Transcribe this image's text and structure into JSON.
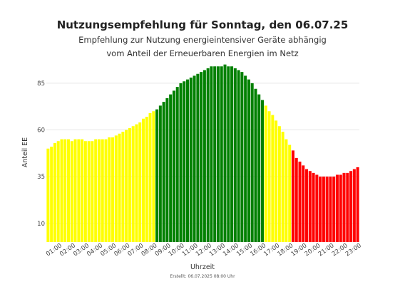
{
  "chart_data": {
    "type": "bar",
    "title": "Nutzungsempfehlung für Sonntag, den 06.07.25",
    "subtitle_lines": [
      "Empfehlung zur Nutzung energieintensiver Geräte abhängig",
      "vom Anteil der Erneuerbaren Energien im Netz"
    ],
    "xlabel": "Uhrzeit",
    "ylabel": "Anteil EE",
    "yticks": [
      10,
      35,
      60,
      85
    ],
    "ylim": [
      0,
      96
    ],
    "grid": true,
    "xtick_labels": [
      "01:00",
      "02:00",
      "03:00",
      "04:00",
      "05:00",
      "06:00",
      "07:00",
      "08:00",
      "09:00",
      "10:00",
      "11:00",
      "12:00",
      "13:00",
      "14:00",
      "15:00",
      "16:00",
      "17:00",
      "18:00",
      "19:00",
      "20:00",
      "21:00",
      "22:00",
      "23:00"
    ],
    "footer": "Erstellt: 06.07.2025 08:00 Uhr",
    "colors": {
      "yellow": "#ffff00",
      "green": "#008000",
      "red": "#ff0000",
      "grid": "#e6e6e6"
    },
    "values": [
      50,
      51,
      53,
      54,
      55,
      55,
      55,
      54,
      55,
      55,
      55,
      54,
      54,
      54,
      55,
      55,
      55,
      55,
      56,
      56,
      57,
      58,
      59,
      60,
      61,
      62,
      63,
      64,
      66,
      67,
      69,
      70,
      71,
      73,
      75,
      77,
      79,
      81,
      83,
      85,
      86,
      87,
      88,
      89,
      90,
      91,
      92,
      93,
      94,
      94,
      94,
      94,
      95,
      94,
      94,
      93,
      92,
      91,
      89,
      87,
      85,
      82,
      79,
      76,
      73,
      70,
      68,
      65,
      62,
      59,
      55,
      52,
      49,
      45,
      43,
      41,
      39,
      38,
      37,
      36,
      35,
      35,
      35,
      35,
      35,
      36,
      36,
      37,
      37,
      38,
      39,
      40
    ],
    "bar_colors": [
      "yellow",
      "yellow",
      "yellow",
      "yellow",
      "yellow",
      "yellow",
      "yellow",
      "yellow",
      "yellow",
      "yellow",
      "yellow",
      "yellow",
      "yellow",
      "yellow",
      "yellow",
      "yellow",
      "yellow",
      "yellow",
      "yellow",
      "yellow",
      "yellow",
      "yellow",
      "yellow",
      "yellow",
      "yellow",
      "yellow",
      "yellow",
      "yellow",
      "yellow",
      "yellow",
      "yellow",
      "yellow",
      "green",
      "green",
      "green",
      "green",
      "green",
      "green",
      "green",
      "green",
      "green",
      "green",
      "green",
      "green",
      "green",
      "green",
      "green",
      "green",
      "green",
      "green",
      "green",
      "green",
      "green",
      "green",
      "green",
      "green",
      "green",
      "green",
      "green",
      "green",
      "green",
      "green",
      "green",
      "green",
      "yellow",
      "yellow",
      "yellow",
      "yellow",
      "yellow",
      "yellow",
      "yellow",
      "yellow",
      "red",
      "red",
      "red",
      "red",
      "red",
      "red",
      "red",
      "red",
      "red",
      "red",
      "red",
      "red",
      "red",
      "red",
      "red",
      "red",
      "red",
      "red",
      "red",
      "red"
    ]
  }
}
